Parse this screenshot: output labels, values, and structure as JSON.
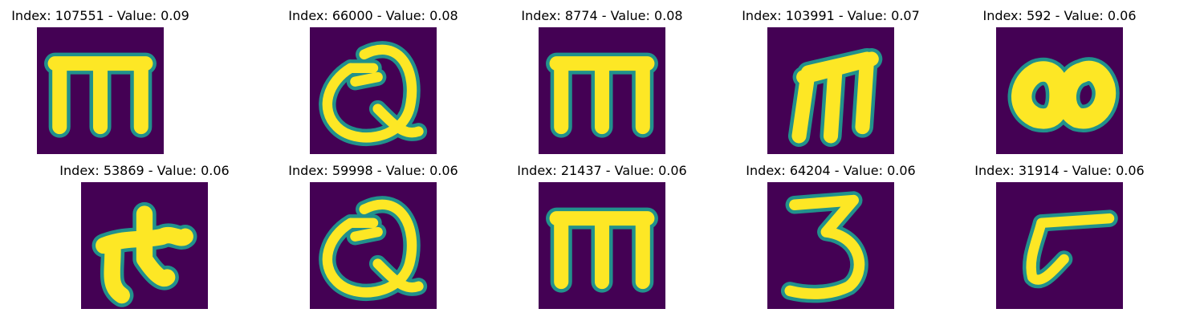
{
  "figure": {
    "panels": [
      {
        "title": "Index: 107551 - Value: 0.09",
        "glyph": "m-serif"
      },
      {
        "title": "Index: 66000 - Value: 0.08",
        "glyph": "script-q"
      },
      {
        "title": "Index: 8774 - Value: 0.08",
        "glyph": "m-serif"
      },
      {
        "title": "Index: 103991 - Value: 0.07",
        "glyph": "m-italic"
      },
      {
        "title": "Index: 592 - Value: 0.06",
        "glyph": "blob-eight"
      },
      {
        "title": "Index: 53869 - Value: 0.06",
        "glyph": "star-blob"
      },
      {
        "title": "Index: 59998 - Value: 0.06",
        "glyph": "script-q"
      },
      {
        "title": "Index: 21437 - Value: 0.06",
        "glyph": "m-serif"
      },
      {
        "title": "Index: 64204 - Value: 0.06",
        "glyph": "three"
      },
      {
        "title": "Index: 31914 - Value: 0.06",
        "glyph": "hook-t"
      }
    ],
    "colors": {
      "background": "#440154",
      "edge": "#21918c",
      "stroke": "#fde725"
    }
  }
}
